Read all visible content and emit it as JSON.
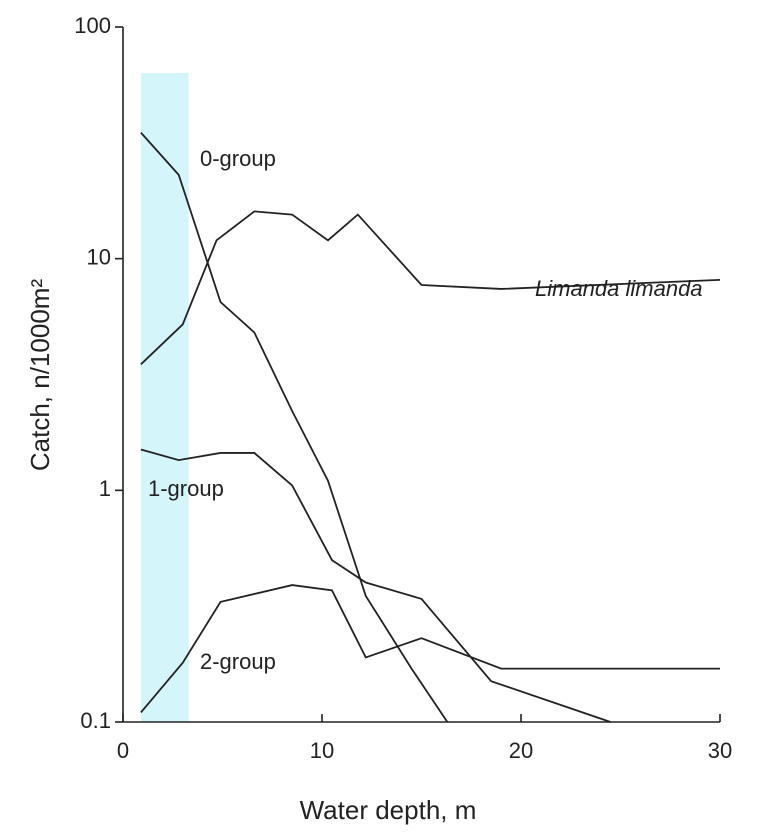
{
  "chart_data": {
    "type": "line",
    "log_y": true,
    "xlabel": "Water depth, m",
    "ylabel": "Catch, n/1000m²",
    "xlim": [
      0,
      30
    ],
    "ylim": [
      0.1,
      100
    ],
    "xticks": [
      0,
      10,
      20,
      30
    ],
    "yticks": [
      0.1,
      1,
      10,
      100
    ],
    "shaded_span": [
      0.9,
      3.3
    ],
    "shade_color": "#d4f6fb",
    "series": [
      {
        "name": "0-group",
        "color": "#222",
        "x": [
          0.9,
          2.8,
          4.9,
          6.6,
          8.5,
          10.3,
          12.2,
          14.5,
          16.3
        ],
        "values": [
          35,
          23,
          6.5,
          4.8,
          2.2,
          1.1,
          0.35,
          0.17,
          0.1
        ]
      },
      {
        "name": "1-group",
        "color": "#222",
        "x": [
          0.9,
          2.8,
          4.9,
          6.6,
          8.5,
          10.5,
          12.2,
          15,
          18.5,
          24.5
        ],
        "values": [
          1.5,
          1.35,
          1.45,
          1.45,
          1.05,
          0.5,
          0.4,
          0.34,
          0.15,
          0.1
        ]
      },
      {
        "name": "2-group",
        "color": "#222",
        "x": [
          0.9,
          3,
          4.9,
          8.5,
          10.5,
          12.2,
          15,
          19,
          30
        ],
        "values": [
          0.11,
          0.18,
          0.33,
          0.39,
          0.37,
          0.19,
          0.23,
          0.17,
          0.17
        ]
      },
      {
        "name": "Limanda limanda",
        "color": "#222",
        "x": [
          0.9,
          3,
          4.7,
          6.6,
          8.5,
          10.3,
          11.8,
          15,
          19,
          30
        ],
        "values": [
          3.5,
          5.2,
          12,
          16,
          15.5,
          12,
          15.5,
          7.7,
          7.4,
          8.1
        ]
      }
    ]
  }
}
